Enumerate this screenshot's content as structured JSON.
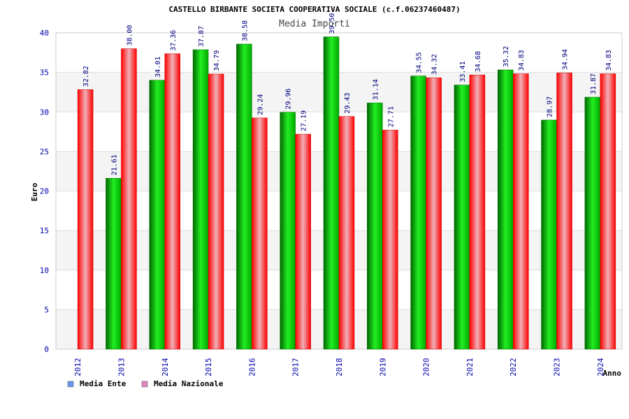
{
  "chart_data": {
    "type": "bar",
    "title": "CASTELLO BIRBANTE SOCIETA COOPERATIVA SOCIALE (c.f.06237460487)",
    "subtitle": "Media Importi",
    "xlabel": "Anno",
    "ylabel": "Euro",
    "ylim": [
      0,
      40
    ],
    "yticks": [
      0,
      5,
      10,
      15,
      20,
      25,
      30,
      35,
      40
    ],
    "grid": true,
    "legend_position": "bottom-left",
    "categories": [
      "2012",
      "2013",
      "2014",
      "2015",
      "2016",
      "2017",
      "2018",
      "2019",
      "2020",
      "2021",
      "2022",
      "2023",
      "2024"
    ],
    "series": [
      {
        "name": "Media Ente",
        "color": "#00cc00",
        "legend_color": "#6699ee",
        "values": [
          null,
          21.61,
          34.01,
          37.87,
          38.58,
          29.96,
          39.5,
          31.14,
          34.55,
          33.41,
          35.32,
          28.97,
          31.87
        ],
        "labels": [
          "",
          "21.61",
          "34.01",
          "37.87",
          "38.58",
          "29.96",
          "39.50",
          "31.14",
          "34.55",
          "33.41",
          "35.32",
          "28.97",
          "31.87"
        ]
      },
      {
        "name": "Media Nazionale",
        "color": "#ee1111",
        "legend_color": "#dd88bb",
        "values": [
          32.82,
          38.0,
          37.36,
          34.79,
          29.24,
          27.19,
          29.43,
          27.71,
          34.32,
          34.68,
          34.83,
          34.94,
          34.83
        ],
        "labels": [
          "32.82",
          "38.00",
          "37.36",
          "34.79",
          "29.24",
          "27.19",
          "29.43",
          "27.71",
          "34.32",
          "34.68",
          "34.83",
          "34.94",
          "34.83"
        ]
      }
    ]
  }
}
